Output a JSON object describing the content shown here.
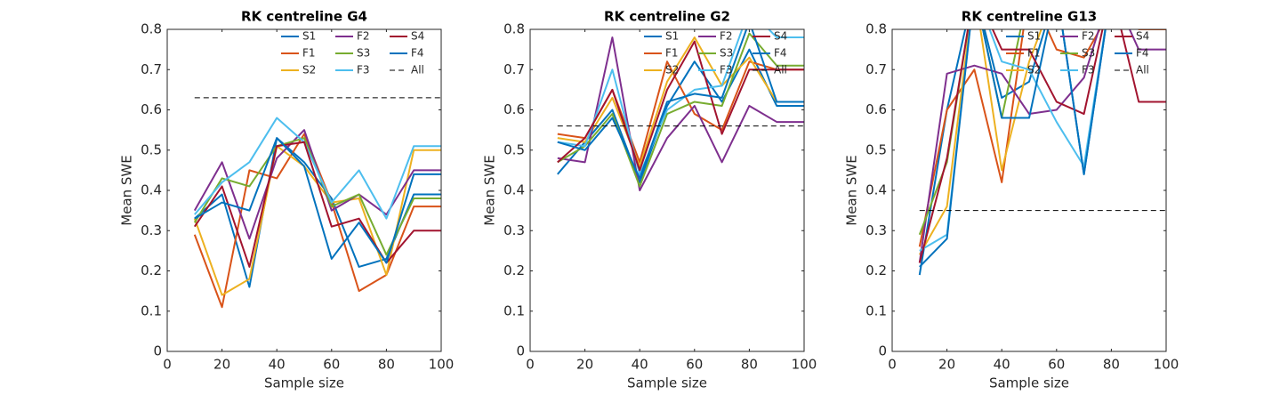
{
  "chart_data": [
    {
      "type": "line",
      "title": "RK centreline G4",
      "xlabel": "Sample size",
      "ylabel": "Mean SWE",
      "x": [
        10,
        20,
        30,
        40,
        50,
        60,
        70,
        80,
        90,
        100
      ],
      "xlim": [
        0,
        100
      ],
      "xticks": [
        0,
        20,
        40,
        60,
        80,
        100
      ],
      "ylim": [
        0,
        0.8
      ],
      "yticks": [
        0,
        0.1,
        0.2,
        0.3,
        0.4,
        0.5,
        0.6,
        0.7,
        0.8
      ],
      "series": [
        {
          "name": "S1",
          "color": "#0072BD",
          "values": [
            0.33,
            0.39,
            0.16,
            0.53,
            0.47,
            0.38,
            0.21,
            0.23,
            0.39,
            0.39
          ]
        },
        {
          "name": "F1",
          "color": "#D95319",
          "values": [
            0.29,
            0.11,
            0.45,
            0.43,
            0.54,
            0.37,
            0.15,
            0.19,
            0.36,
            0.36
          ]
        },
        {
          "name": "S2",
          "color": "#EDB120",
          "values": [
            0.33,
            0.14,
            0.18,
            0.51,
            0.46,
            0.37,
            0.38,
            0.19,
            0.5,
            0.5
          ]
        },
        {
          "name": "F2",
          "color": "#7E2F8E",
          "values": [
            0.35,
            0.47,
            0.28,
            0.48,
            0.55,
            0.35,
            0.39,
            0.34,
            0.45,
            0.45
          ]
        },
        {
          "name": "S3",
          "color": "#77AC30",
          "values": [
            0.32,
            0.43,
            0.41,
            0.51,
            0.53,
            0.36,
            0.39,
            0.24,
            0.38,
            0.38
          ]
        },
        {
          "name": "F3",
          "color": "#4DBEEE",
          "values": [
            0.34,
            0.42,
            0.47,
            0.58,
            0.52,
            0.37,
            0.45,
            0.33,
            0.51,
            0.51
          ]
        },
        {
          "name": "S4",
          "color": "#A2142F",
          "values": [
            0.31,
            0.41,
            0.21,
            0.51,
            0.52,
            0.31,
            0.33,
            0.22,
            0.3,
            0.3
          ]
        },
        {
          "name": "F4",
          "color": "#0072BD",
          "values": [
            0.33,
            0.37,
            0.35,
            0.53,
            0.46,
            0.23,
            0.32,
            0.22,
            0.44,
            0.44
          ]
        },
        {
          "name": "All",
          "color": "#000000",
          "style": "dashed",
          "values": [
            0.63,
            0.63,
            0.63,
            0.63,
            0.63,
            0.63,
            0.63,
            0.63,
            0.63,
            0.63
          ]
        }
      ]
    },
    {
      "type": "line",
      "title": "RK centreline G2",
      "xlabel": "Sample size",
      "ylabel": "Mean SWE",
      "x": [
        10,
        20,
        30,
        40,
        50,
        60,
        70,
        80,
        90,
        100
      ],
      "xlim": [
        0,
        100
      ],
      "xticks": [
        0,
        20,
        40,
        60,
        80,
        100
      ],
      "ylim": [
        0,
        0.8
      ],
      "yticks": [
        0,
        0.1,
        0.2,
        0.3,
        0.4,
        0.5,
        0.6,
        0.7,
        0.8
      ],
      "series": [
        {
          "name": "S1",
          "color": "#0072BD",
          "values": [
            0.44,
            0.52,
            0.6,
            0.42,
            0.61,
            0.72,
            0.62,
            0.75,
            0.61,
            0.61
          ]
        },
        {
          "name": "F1",
          "color": "#D95319",
          "values": [
            0.54,
            0.53,
            0.65,
            0.47,
            0.72,
            0.59,
            0.55,
            0.72,
            0.7,
            0.7
          ]
        },
        {
          "name": "S2",
          "color": "#EDB120",
          "values": [
            0.53,
            0.52,
            0.63,
            0.46,
            0.67,
            0.78,
            0.66,
            0.73,
            0.62,
            0.62
          ]
        },
        {
          "name": "F2",
          "color": "#7E2F8E",
          "values": [
            0.48,
            0.47,
            0.78,
            0.4,
            0.53,
            0.61,
            0.47,
            0.61,
            0.57,
            0.57
          ]
        },
        {
          "name": "S3",
          "color": "#77AC30",
          "values": [
            0.47,
            0.51,
            0.59,
            0.41,
            0.59,
            0.62,
            0.61,
            0.79,
            0.71,
            0.71
          ]
        },
        {
          "name": "F3",
          "color": "#4DBEEE",
          "values": [
            0.52,
            0.51,
            0.7,
            0.44,
            0.6,
            0.65,
            0.66,
            0.85,
            0.78,
            0.78
          ]
        },
        {
          "name": "S4",
          "color": "#A2142F",
          "values": [
            0.47,
            0.53,
            0.65,
            0.45,
            0.65,
            0.77,
            0.54,
            0.7,
            0.7,
            0.7
          ]
        },
        {
          "name": "F4",
          "color": "#0072BD",
          "values": [
            0.52,
            0.5,
            0.58,
            0.43,
            0.62,
            0.64,
            0.63,
            0.82,
            0.62,
            0.62
          ]
        },
        {
          "name": "All",
          "color": "#000000",
          "style": "dashed",
          "values": [
            0.56,
            0.56,
            0.56,
            0.56,
            0.56,
            0.56,
            0.56,
            0.56,
            0.56,
            0.56
          ]
        }
      ]
    },
    {
      "type": "line",
      "title": "RK centreline G13",
      "xlabel": "Sample size",
      "ylabel": "Mean SWE",
      "x": [
        10,
        20,
        30,
        40,
        50,
        60,
        70,
        80,
        90,
        100
      ],
      "xlim": [
        0,
        100
      ],
      "xticks": [
        0,
        20,
        40,
        60,
        80,
        100
      ],
      "ylim": [
        0,
        0.8
      ],
      "yticks": [
        0,
        0.1,
        0.2,
        0.3,
        0.4,
        0.5,
        0.6,
        0.7,
        0.8
      ],
      "series": [
        {
          "name": "S1",
          "color": "#0072BD",
          "values": [
            0.19,
            0.6,
            0.9,
            0.63,
            0.67,
            0.9,
            0.44,
            0.9,
            0.85,
            0.85
          ]
        },
        {
          "name": "F1",
          "color": "#D95319",
          "values": [
            0.26,
            0.6,
            0.7,
            0.42,
            0.9,
            0.75,
            0.73,
            0.85,
            0.8,
            0.8
          ]
        },
        {
          "name": "S2",
          "color": "#EDB120",
          "values": [
            0.24,
            0.36,
            0.9,
            0.45,
            0.72,
            0.9,
            0.8,
            0.9,
            0.85,
            0.85
          ]
        },
        {
          "name": "F2",
          "color": "#7E2F8E",
          "values": [
            0.22,
            0.69,
            0.71,
            0.69,
            0.59,
            0.6,
            0.68,
            0.9,
            0.75,
            0.75
          ]
        },
        {
          "name": "S3",
          "color": "#77AC30",
          "values": [
            0.29,
            0.47,
            0.9,
            0.58,
            0.9,
            0.9,
            0.85,
            0.9,
            0.85,
            0.85
          ]
        },
        {
          "name": "F3",
          "color": "#4DBEEE",
          "values": [
            0.25,
            0.29,
            0.9,
            0.72,
            0.7,
            0.57,
            0.46,
            0.9,
            0.85,
            0.85
          ]
        },
        {
          "name": "S4",
          "color": "#A2142F",
          "values": [
            0.22,
            0.48,
            0.9,
            0.75,
            0.75,
            0.62,
            0.59,
            0.9,
            0.62,
            0.62
          ]
        },
        {
          "name": "F4",
          "color": "#0072BD",
          "values": [
            0.21,
            0.28,
            0.9,
            0.58,
            0.58,
            0.9,
            0.44,
            0.9,
            0.85,
            0.85
          ]
        },
        {
          "name": "All",
          "color": "#000000",
          "style": "dashed",
          "values": [
            0.35,
            0.35,
            0.35,
            0.35,
            0.35,
            0.35,
            0.35,
            0.35,
            0.35,
            0.35
          ]
        }
      ]
    }
  ]
}
